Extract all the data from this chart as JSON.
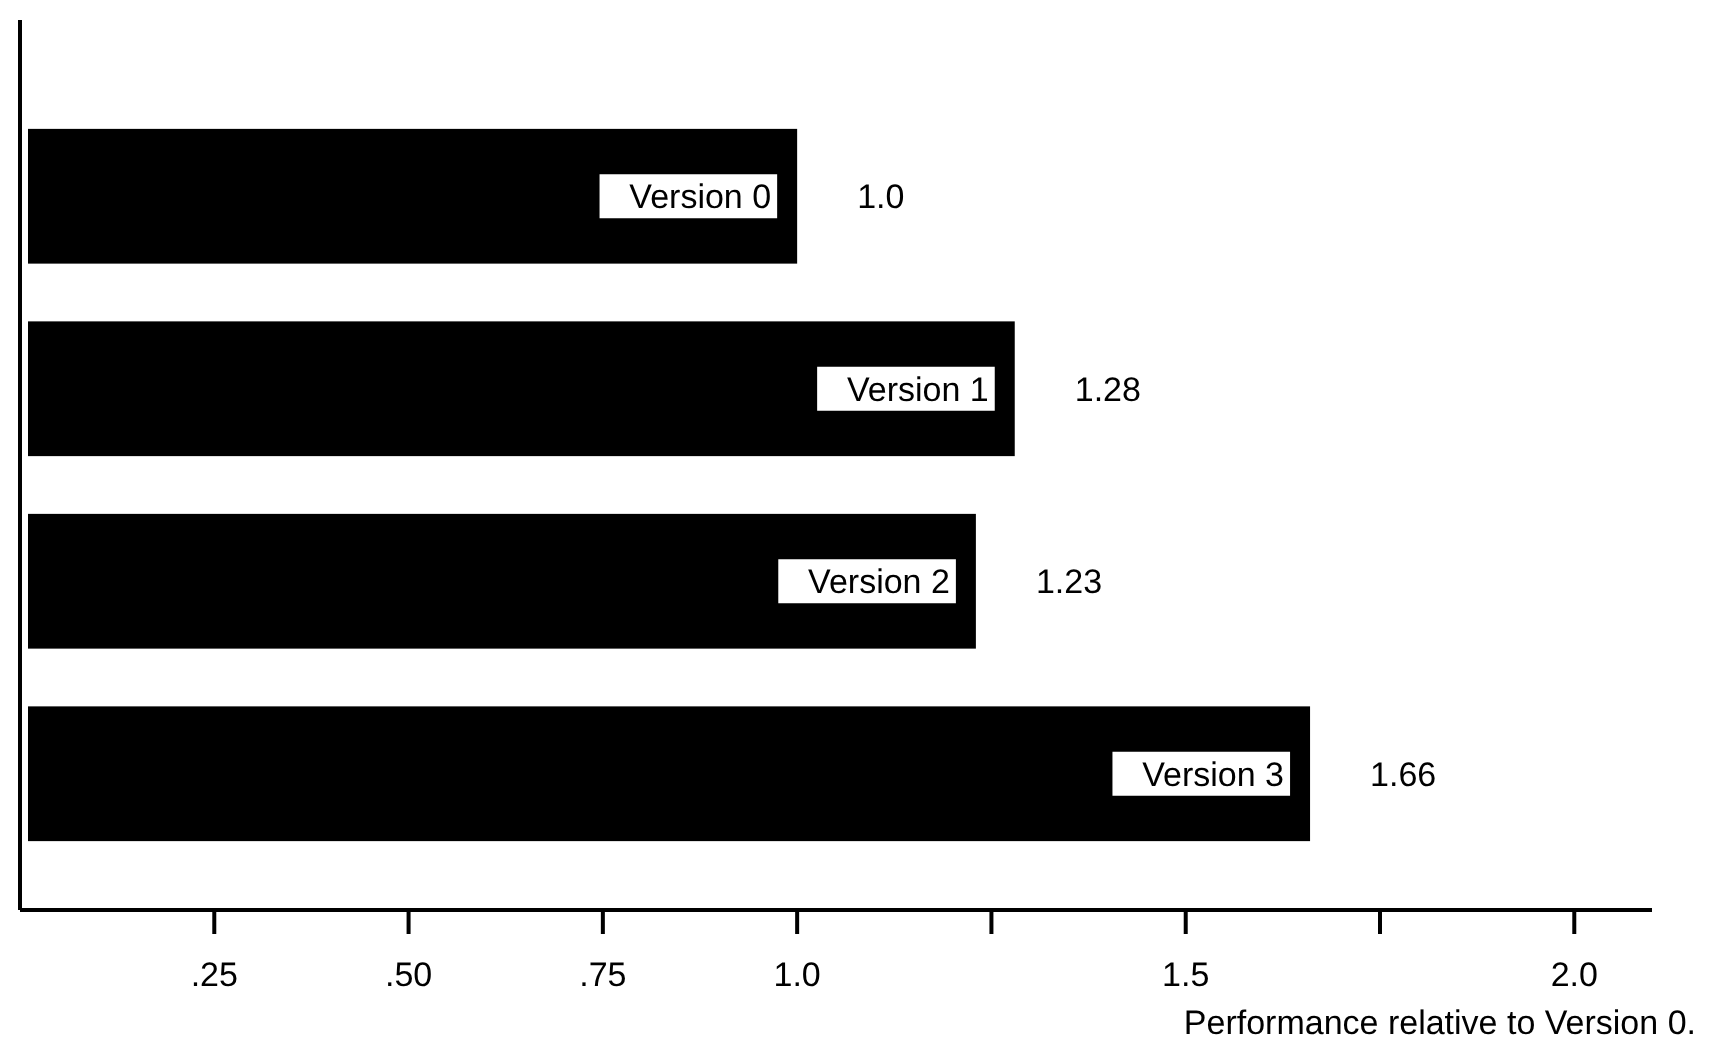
{
  "chart_data": {
    "type": "bar",
    "orientation": "horizontal",
    "xlabel": "Performance relative to Version 0.",
    "categories": [
      "Version 0",
      "Version 1",
      "Version 2",
      "Version 3"
    ],
    "values": [
      1,
      1.28,
      1.23,
      1.66
    ],
    "value_labels": [
      "1.0",
      "1.28",
      "1.23",
      "1.66"
    ],
    "color": "#000000",
    "xlim": [
      0,
      2.1
    ],
    "xticks": [
      {
        "value": 0.25,
        "label": ".25"
      },
      {
        "value": 0.5,
        "label": ".50"
      },
      {
        "value": 0.75,
        "label": ".75"
      },
      {
        "value": 1,
        "label": "1.0"
      },
      {
        "value": 1.25,
        "label": null
      },
      {
        "value": 1.5,
        "label": "1.5"
      },
      {
        "value": 1.75,
        "label": null
      },
      {
        "value": 2,
        "label": "2.0"
      }
    ]
  }
}
